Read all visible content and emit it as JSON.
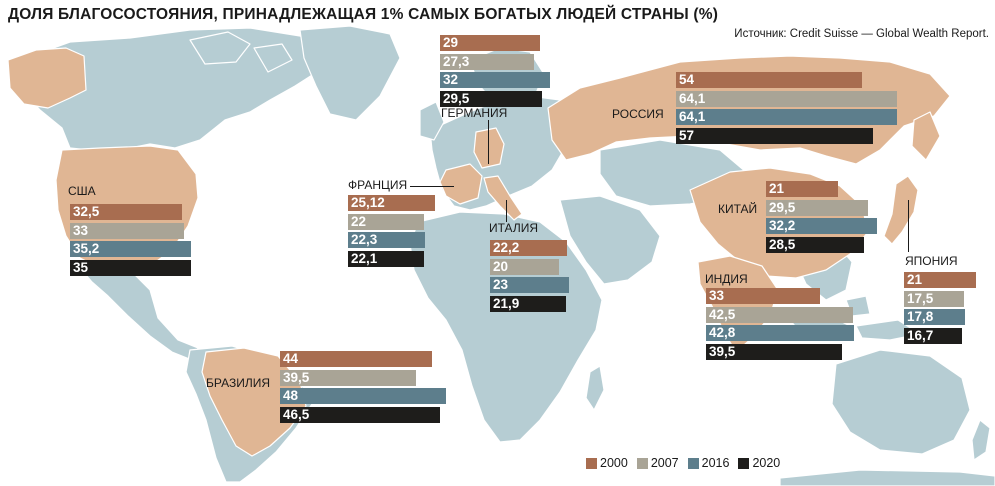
{
  "title": "ДОЛЯ БЛАГОСОСТОЯНИЯ, ПРИНАДЛЕЖАЩАЯ 1% САМЫХ БОГАТЫХ ЛЮДЕЙ СТРАНЫ (%)",
  "source": "Источник: Credit Suisse — Global Wealth Report.",
  "colors": {
    "2000": "#a86d50",
    "2007": "#a9a496",
    "2016": "#5d7e8c",
    "2020": "#1e1d1b",
    "land": "#b6cdd3",
    "highlight": "#e0b694",
    "border": "#ffffff"
  },
  "legend": [
    {
      "year": "2000",
      "label": "2000"
    },
    {
      "year": "2007",
      "label": "2007"
    },
    {
      "year": "2016",
      "label": "2016"
    },
    {
      "year": "2020",
      "label": "2020"
    }
  ],
  "chart_data": {
    "type": "bar",
    "title": "ДОЛЯ БЛАГОСОСТОЯНИЯ, ПРИНАДЛЕЖАЩАЯ 1% САМЫХ БОГАТЫХ ЛЮДЕЙ СТРАНЫ (%)",
    "series_names": [
      "2000",
      "2007",
      "2016",
      "2020"
    ],
    "countries": [
      {
        "id": "usa",
        "name": "США",
        "labels": [
          "32,5",
          "33",
          "35,2",
          "35"
        ],
        "values": [
          32.5,
          33,
          35.2,
          35
        ]
      },
      {
        "id": "brazil",
        "name": "БРАЗИЛИЯ",
        "labels": [
          "44",
          "39,5",
          "48",
          "46,5"
        ],
        "values": [
          44,
          39.5,
          48,
          46.5
        ]
      },
      {
        "id": "germany",
        "name": "ГЕРМАНИЯ",
        "labels": [
          "29",
          "27,3",
          "32",
          "29,5"
        ],
        "values": [
          29,
          27.3,
          32,
          29.5
        ]
      },
      {
        "id": "france",
        "name": "ФРАНЦИЯ",
        "labels": [
          "25,12",
          "22",
          "22,3",
          "22,1"
        ],
        "values": [
          25.12,
          22,
          22.3,
          22.1
        ]
      },
      {
        "id": "italy",
        "name": "ИТАЛИЯ",
        "labels": [
          "22,2",
          "20",
          "23",
          "21,9"
        ],
        "values": [
          22.2,
          20,
          23,
          21.9
        ]
      },
      {
        "id": "russia",
        "name": "РОССИЯ",
        "labels": [
          "54",
          "64,1",
          "64,1",
          "57"
        ],
        "values": [
          54,
          64.1,
          64.1,
          57
        ]
      },
      {
        "id": "china",
        "name": "КИТАЙ",
        "labels": [
          "21",
          "29,5",
          "32,2",
          "28,5"
        ],
        "values": [
          21,
          29.5,
          32.2,
          28.5
        ]
      },
      {
        "id": "india",
        "name": "ИНДИЯ",
        "labels": [
          "33",
          "42,5",
          "42,8",
          "39,5"
        ],
        "values": [
          33,
          42.5,
          42.8,
          39.5
        ]
      },
      {
        "id": "japan",
        "name": "ЯПОНИЯ",
        "labels": [
          "21",
          "17,5",
          "17,8",
          "16,7"
        ],
        "values": [
          21,
          17.5,
          17.8,
          16.7
        ]
      }
    ]
  }
}
